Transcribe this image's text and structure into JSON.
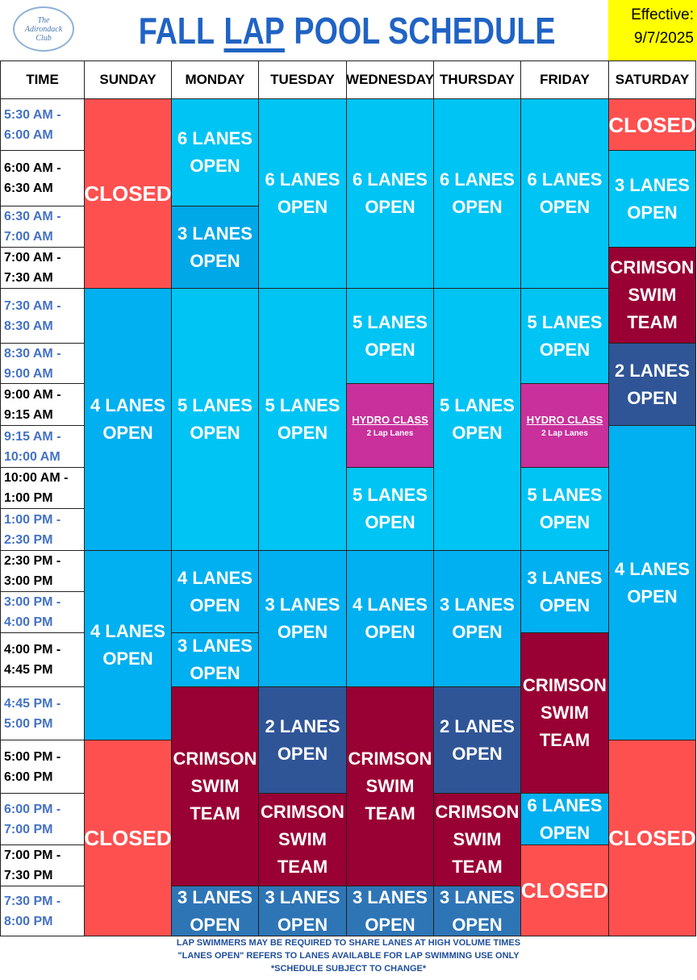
{
  "header": {
    "logo": "The Adirondack Club",
    "title": [
      "FALL",
      "LAP",
      "POOL SCHEDULE"
    ],
    "effective_label": "Effective:",
    "effective_date": "9/7/2025"
  },
  "table": {
    "columns": [
      "TIME",
      "SUNDAY",
      "MONDAY",
      "TUESDAY",
      "WEDNESDAY",
      "THURSDAY",
      "FRIDAY",
      "SATURDAY"
    ],
    "times": [
      [
        "5:30 AM -",
        "6:00 AM"
      ],
      [
        "6:00 AM -",
        "6:30 AM"
      ],
      [
        "6:30 AM -",
        "7:00 AM"
      ],
      [
        "7:00 AM -",
        "7:30 AM"
      ],
      [
        "7:30 AM -",
        "8:30 AM"
      ],
      [
        "8:30 AM -",
        "9:00 AM"
      ],
      [
        "9:00 AM -",
        "9:15 AM"
      ],
      [
        "9:15 AM -",
        "10:00 AM"
      ],
      [
        "10:00 AM -",
        "1:00 PM"
      ],
      [
        "1:00 PM -",
        "2:30 PM"
      ],
      [
        "2:30 PM -",
        "3:00 PM"
      ],
      [
        "3:00 PM -",
        "4:00 PM"
      ],
      [
        "4:00 PM -",
        "4:45 PM"
      ],
      [
        "4:45 PM -",
        "5:00 PM"
      ],
      [
        "5:00 PM -",
        "6:00 PM"
      ],
      [
        "6:00 PM -",
        "7:00 PM"
      ],
      [
        "7:00 PM -",
        "7:30 PM"
      ],
      [
        "7:30 PM -",
        "8:00 PM"
      ]
    ],
    "schedule": [
      {
        "blocks": [
          {
            "lines": [
              "CLOSED"
            ],
            "color": "#ff5050",
            "span": 4
          },
          {
            "lines": [
              "4 LANES",
              "OPEN"
            ],
            "color": "#00b0f0",
            "span": 6
          },
          {
            "lines": [
              "4 LANES",
              "OPEN"
            ],
            "color": "#00b0f0",
            "span": 4
          },
          {
            "lines": [
              "CLOSED"
            ],
            "color": "#ff5050",
            "span": 4
          }
        ]
      },
      {
        "blocks": [
          {
            "lines": [
              "6 LANES",
              "OPEN"
            ],
            "color": "#00c4f4",
            "span": 2
          },
          {
            "lines": [
              "3 LANES",
              "OPEN"
            ],
            "color": "#00a8e8",
            "span": 2
          },
          {
            "lines": [
              "5 LANES",
              "OPEN"
            ],
            "color": "#00c4f4",
            "span": 6
          },
          {
            "lines": [
              "4 LANES",
              "OPEN"
            ],
            "color": "#00b0f0",
            "span": 2
          },
          {
            "lines": [
              "3 LANES",
              "OPEN"
            ],
            "color": "#00b0f0",
            "span": 1
          },
          {
            "lines": [
              "CRIMSON",
              "SWIM",
              "TEAM"
            ],
            "color": "#990033",
            "span": 4
          },
          {
            "lines": [
              "3 LANES",
              "OPEN"
            ],
            "color": "#2e75b6",
            "span": 1
          }
        ]
      },
      {
        "blocks": [
          {
            "lines": [
              "6 LANES",
              "OPEN"
            ],
            "color": "#00c4f4",
            "span": 4
          },
          {
            "lines": [
              "5 LANES",
              "OPEN"
            ],
            "color": "#00c4f4",
            "span": 6
          },
          {
            "lines": [
              "3 LANES",
              "OPEN"
            ],
            "color": "#00b0f0",
            "span": 3
          },
          {
            "lines": [
              "2 LANES",
              "OPEN"
            ],
            "color": "#2f5597",
            "span": 2
          },
          {
            "lines": [
              "CRIMSON",
              "SWIM",
              "TEAM"
            ],
            "color": "#990033",
            "span": 2
          },
          {
            "lines": [
              "3 LANES",
              "OPEN"
            ],
            "color": "#2e75b6",
            "span": 1
          }
        ]
      },
      {
        "blocks": [
          {
            "lines": [
              "6 LANES",
              "OPEN"
            ],
            "color": "#00c4f4",
            "span": 4
          },
          {
            "lines": [
              "5 LANES",
              "OPEN"
            ],
            "color": "#00c4f4",
            "span": 2
          },
          {
            "lines": [
              "HYDRO CLASS"
            ],
            "note": "2 Lap Lanes",
            "color": "#c9309b",
            "span": 2
          },
          {
            "lines": [
              "5 LANES",
              "OPEN"
            ],
            "color": "#00c4f4",
            "span": 2
          },
          {
            "lines": [
              "4 LANES",
              "OPEN"
            ],
            "color": "#00b0f0",
            "span": 3
          },
          {
            "lines": [
              "CRIMSON",
              "SWIM",
              "TEAM"
            ],
            "color": "#990033",
            "span": 4
          },
          {
            "lines": [
              "3 LANES",
              "OPEN"
            ],
            "color": "#2e75b6",
            "span": 1
          }
        ]
      },
      {
        "blocks": [
          {
            "lines": [
              "6 LANES",
              "OPEN"
            ],
            "color": "#00c4f4",
            "span": 4
          },
          {
            "lines": [
              "5 LANES",
              "OPEN"
            ],
            "color": "#00c4f4",
            "span": 6
          },
          {
            "lines": [
              "3 LANES",
              "OPEN"
            ],
            "color": "#00b0f0",
            "span": 3
          },
          {
            "lines": [
              "2 LANES",
              "OPEN"
            ],
            "color": "#2f5597",
            "span": 2
          },
          {
            "lines": [
              "CRIMSON",
              "SWIM",
              "TEAM"
            ],
            "color": "#990033",
            "span": 2
          },
          {
            "lines": [
              "3 LANES",
              "OPEN"
            ],
            "color": "#2e75b6",
            "span": 1
          }
        ]
      },
      {
        "blocks": [
          {
            "lines": [
              "6 LANES",
              "OPEN"
            ],
            "color": "#00c4f4",
            "span": 4
          },
          {
            "lines": [
              "5 LANES",
              "OPEN"
            ],
            "color": "#00c4f4",
            "span": 2
          },
          {
            "lines": [
              "HYDRO CLASS"
            ],
            "note": "2 Lap Lanes",
            "color": "#c9309b",
            "span": 2
          },
          {
            "lines": [
              "5 LANES",
              "OPEN"
            ],
            "color": "#00c4f4",
            "span": 2
          },
          {
            "lines": [
              "3 LANES",
              "OPEN"
            ],
            "color": "#00b0f0",
            "span": 2
          },
          {
            "lines": [
              "CRIMSON",
              "SWIM",
              "TEAM"
            ],
            "color": "#990033",
            "span": 3
          },
          {
            "lines": [
              "6 LANES",
              "OPEN"
            ],
            "color": "#00b0f0",
            "span": 1
          },
          {
            "lines": [
              "CLOSED"
            ],
            "color": "#ff5050",
            "span": 2
          }
        ]
      },
      {
        "blocks": [
          {
            "lines": [
              "CLOSED"
            ],
            "color": "#ff5050",
            "span": 1
          },
          {
            "lines": [
              "3 LANES",
              "OPEN"
            ],
            "color": "#00c4f4",
            "span": 2
          },
          {
            "lines": [
              "CRIMSON",
              "SWIM",
              "TEAM"
            ],
            "color": "#990033",
            "span": 2
          },
          {
            "lines": [
              "2 LANES",
              "OPEN"
            ],
            "color": "#2f5597",
            "span": 2
          },
          {
            "lines": [
              "4 LANES",
              "OPEN"
            ],
            "color": "#00b0f0",
            "span": 7
          },
          {
            "lines": [
              "CLOSED"
            ],
            "color": "#ff5050",
            "span": 4
          }
        ]
      }
    ]
  },
  "footer": [
    "LAP SWIMMERS MAY BE REQUIRED TO SHARE LANES AT HIGH VOLUME TIMES",
    "\"LANES OPEN\" REFERS TO LANES AVAILABLE FOR LAP SWIMMING USE ONLY",
    "*SCHEDULE SUBJECT TO CHANGE*"
  ]
}
